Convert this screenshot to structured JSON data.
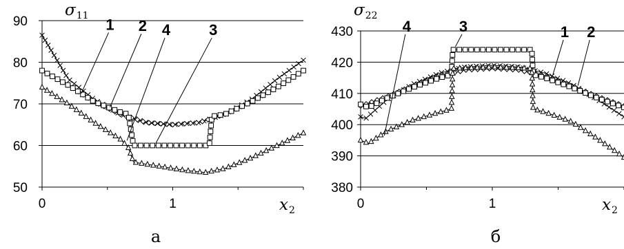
{
  "chart_data": [
    {
      "panel_label": "а",
      "type": "line",
      "ylabel": "σ",
      "ylabel_sub": "11",
      "xlabel": "x",
      "xlabel_sub": "2",
      "xlim": [
        0,
        2
      ],
      "ylim": [
        50,
        90
      ],
      "xticks": [
        "0",
        "1"
      ],
      "xtick_values": [
        0,
        1
      ],
      "yticks": [
        "50",
        "60",
        "70",
        "80",
        "90"
      ],
      "ytick_values": [
        50,
        60,
        70,
        80,
        90
      ],
      "grid": "horizontal",
      "series": [
        {
          "name": "1",
          "marker": "x",
          "x": [
            0,
            0.2,
            0.4,
            0.6,
            0.8,
            1.0,
            1.2,
            1.4,
            1.6,
            1.8,
            2.0
          ],
          "y": [
            86.5,
            76,
            71,
            67.5,
            65.5,
            65,
            65.5,
            67.5,
            71,
            76,
            80.5
          ]
        },
        {
          "name": "2",
          "marker": "diamond",
          "x": [
            0,
            0.2,
            0.4,
            0.6,
            0.8,
            1.0,
            1.2,
            1.4,
            1.6,
            1.8,
            2.0
          ],
          "y": [
            78,
            74.5,
            70.5,
            67.5,
            65.5,
            65,
            65.5,
            67.5,
            70.5,
            74,
            78
          ]
        },
        {
          "name": "3",
          "marker": "square",
          "x": [
            0,
            0.2,
            0.4,
            0.6,
            0.66,
            0.7,
            1.0,
            1.28,
            1.3,
            1.4,
            1.6,
            1.8,
            2.0
          ],
          "y": [
            78,
            74.5,
            70.5,
            68,
            67.5,
            60,
            60,
            60,
            67,
            67.5,
            70.5,
            74,
            78
          ]
        },
        {
          "name": "4",
          "marker": "triangle",
          "x": [
            0,
            0.2,
            0.4,
            0.6,
            0.66,
            0.7,
            0.9,
            1.1,
            1.25,
            1.4,
            1.6,
            1.8,
            2.0
          ],
          "y": [
            74,
            70,
            65.5,
            61.5,
            59.5,
            56,
            55,
            54,
            53.5,
            54.5,
            57,
            60,
            63
          ]
        }
      ],
      "callouts": [
        {
          "label": "1",
          "label_x": 0.52,
          "label_y": 87.8,
          "tip_x": 0.3,
          "tip_y": 72.5
        },
        {
          "label": "2",
          "label_x": 0.77,
          "label_y": 87.5,
          "tip_x": 0.52,
          "tip_y": 69.2
        },
        {
          "label": "4",
          "label_x": 0.95,
          "label_y": 86.5,
          "tip_x": 0.65,
          "tip_y": 61.2
        },
        {
          "label": "3",
          "label_x": 1.31,
          "label_y": 86.5,
          "tip_x": 0.87,
          "tip_y": 60.5
        }
      ]
    },
    {
      "panel_label": "б",
      "type": "line",
      "ylabel": "σ",
      "ylabel_sub": "22",
      "xlabel": "x",
      "xlabel_sub": "2",
      "xlim": [
        0,
        2
      ],
      "ylim": [
        380,
        430
      ],
      "xticks": [
        "0",
        "1"
      ],
      "xtick_values": [
        0,
        1
      ],
      "yticks": [
        "380",
        "390",
        "400",
        "410",
        "420",
        "430"
      ],
      "ytick_values": [
        380,
        390,
        400,
        410,
        420,
        430
      ],
      "grid": "horizontal",
      "series": [
        {
          "name": "1",
          "marker": "x",
          "x": [
            0,
            0.04,
            0.2,
            0.4,
            0.6,
            0.8,
            1.0,
            1.2,
            1.4,
            1.6,
            1.8,
            2.0
          ],
          "y": [
            402.5,
            402,
            408,
            413,
            416.5,
            418.5,
            419,
            418.5,
            416.5,
            413,
            408,
            402.5
          ]
        },
        {
          "name": "2",
          "marker": "diamond",
          "x": [
            0,
            0.2,
            0.4,
            0.6,
            0.8,
            1.0,
            1.2,
            1.4,
            1.6,
            1.8,
            2.0
          ],
          "y": [
            406,
            409,
            412.5,
            415.5,
            417.5,
            418,
            417.5,
            415.5,
            412.5,
            409,
            406
          ]
        },
        {
          "name": "3",
          "marker": "square",
          "x": [
            0,
            0.06,
            0.2,
            0.4,
            0.6,
            0.69,
            0.7,
            1.0,
            1.3,
            1.31,
            1.4,
            1.6,
            1.8,
            2.0
          ],
          "y": [
            406.5,
            405.5,
            408.5,
            412,
            415,
            416,
            424,
            424,
            424,
            416,
            415,
            412,
            408.5,
            405.5
          ]
        },
        {
          "name": "4",
          "marker": "triangle",
          "x": [
            0,
            0.06,
            0.2,
            0.4,
            0.6,
            0.69,
            0.7,
            1.0,
            1.3,
            1.31,
            1.4,
            1.6,
            1.8,
            2.0
          ],
          "y": [
            395,
            394,
            398,
            401.5,
            404,
            405,
            418,
            418.5,
            418,
            405,
            404,
            401,
            395.5,
            389.5
          ]
        }
      ],
      "callouts": [
        {
          "label": "4",
          "label_x": 0.35,
          "label_y": 429.8,
          "tip_x": 0.18,
          "tip_y": 396.5
        },
        {
          "label": "3",
          "label_x": 0.78,
          "label_y": 429.8,
          "tip_x": 0.72,
          "tip_y": 425
        },
        {
          "label": "1",
          "label_x": 1.55,
          "label_y": 428,
          "tip_x": 1.46,
          "tip_y": 416
        },
        {
          "label": "2",
          "label_x": 1.75,
          "label_y": 428,
          "tip_x": 1.65,
          "tip_y": 412.5
        }
      ]
    }
  ]
}
